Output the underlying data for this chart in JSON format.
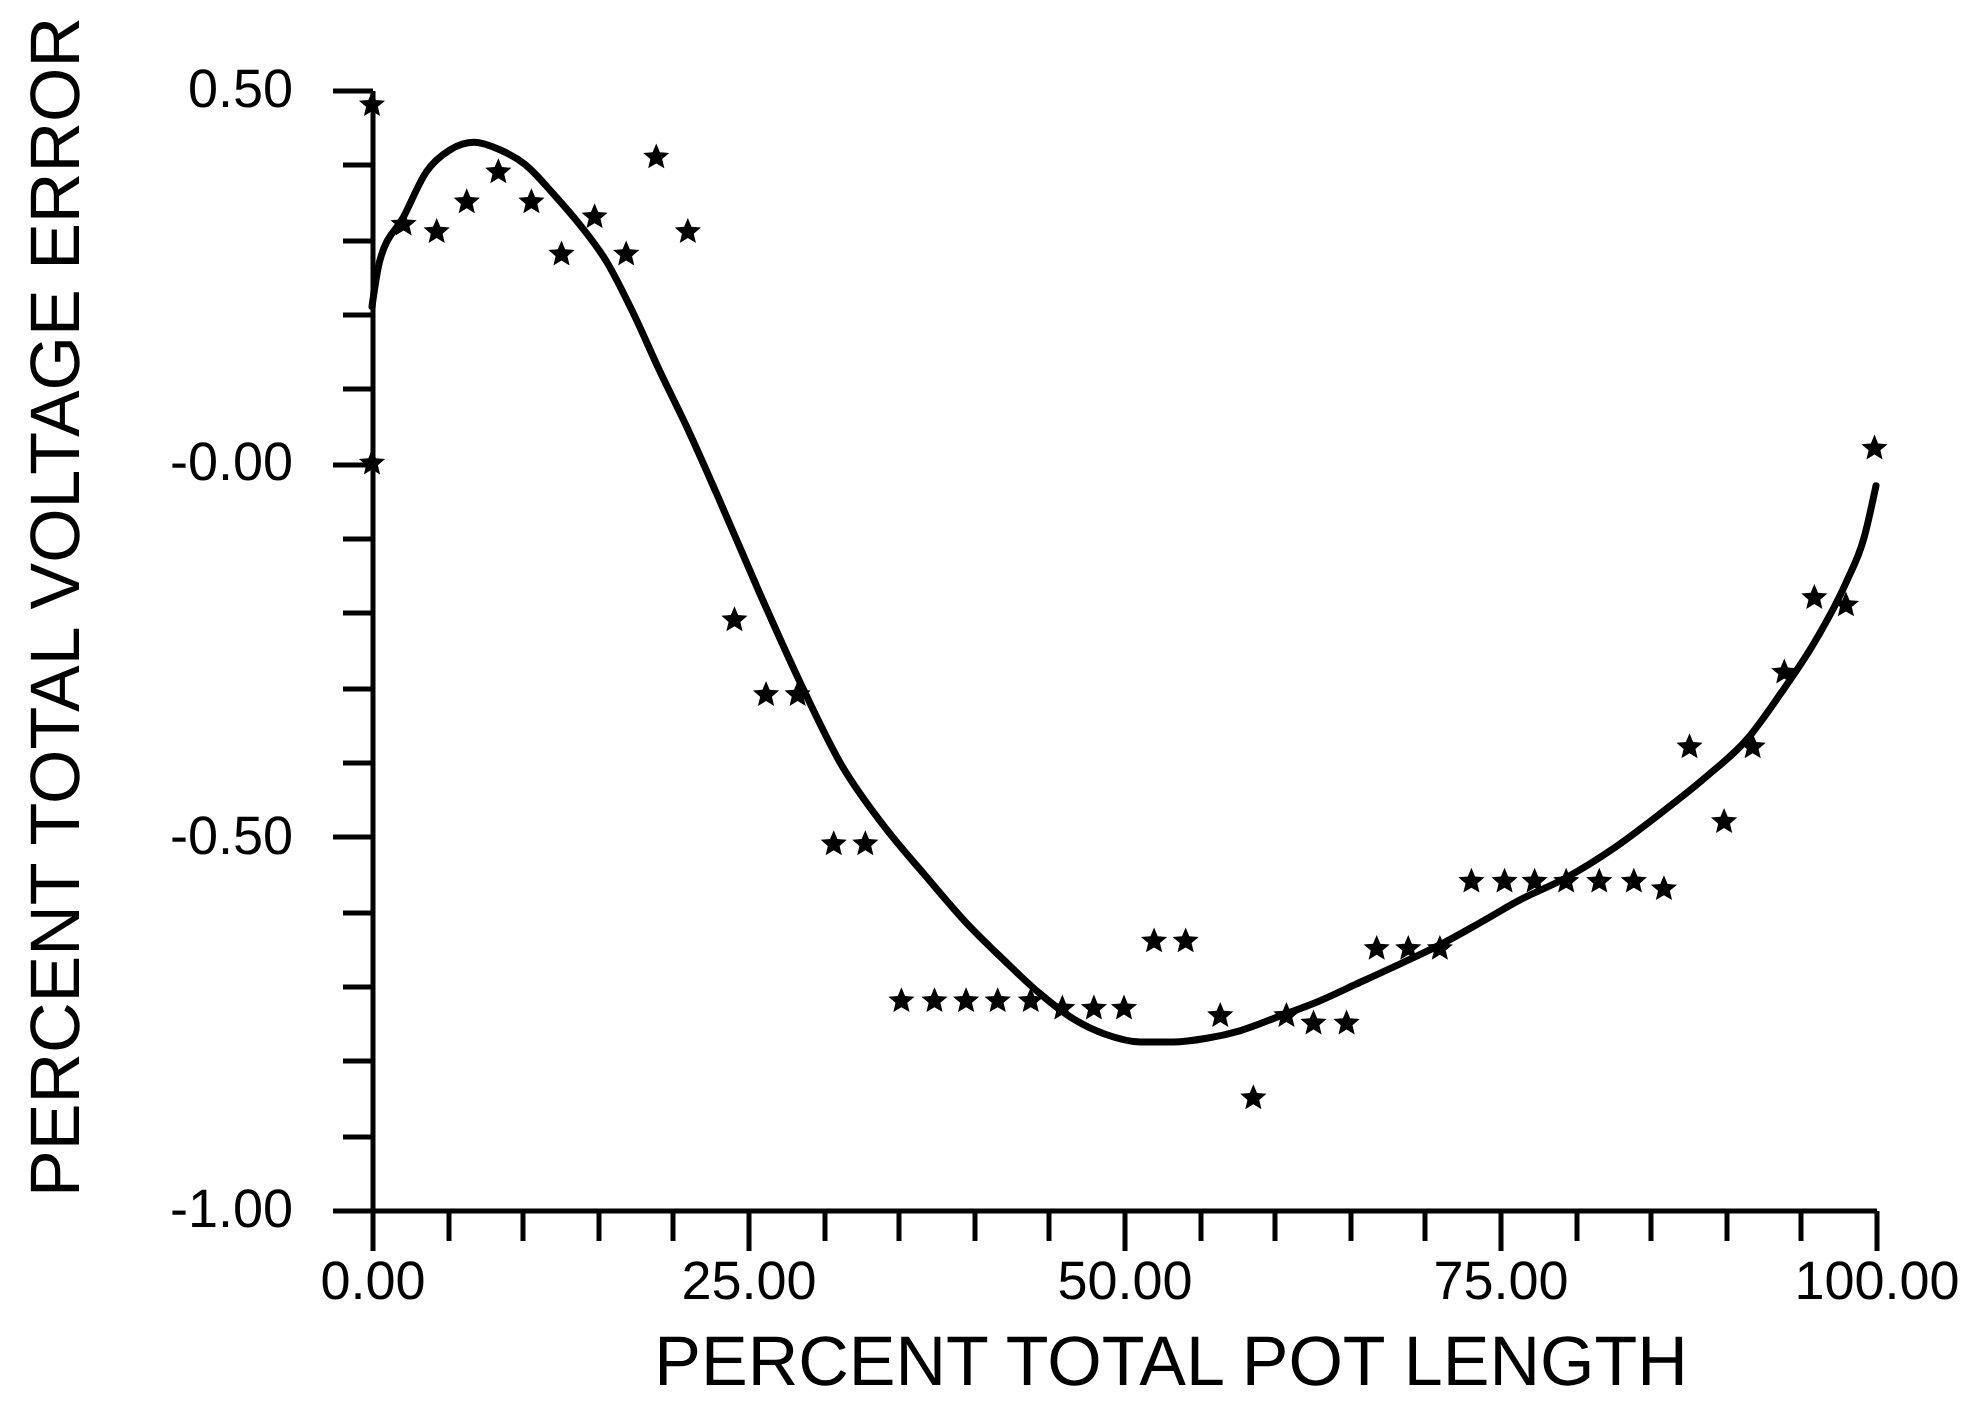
{
  "chart_data": {
    "type": "scatter",
    "xlabel": "PERCENT TOTAL POT LENGTH",
    "ylabel": "PERCENT TOTAL VOLTAGE ERROR",
    "xlim": [
      0,
      100
    ],
    "ylim": [
      -1,
      0.5
    ],
    "xticks": [
      {
        "value": 0,
        "label": "0.00"
      },
      {
        "value": 5,
        "label": null
      },
      {
        "value": 10,
        "label": null
      },
      {
        "value": 15,
        "label": null
      },
      {
        "value": 20,
        "label": null
      },
      {
        "value": 25,
        "label": "25.00"
      },
      {
        "value": 30,
        "label": null
      },
      {
        "value": 35,
        "label": null
      },
      {
        "value": 40,
        "label": null
      },
      {
        "value": 45,
        "label": null
      },
      {
        "value": 50,
        "label": "50.00"
      },
      {
        "value": 55,
        "label": null
      },
      {
        "value": 60,
        "label": null
      },
      {
        "value": 65,
        "label": null
      },
      {
        "value": 70,
        "label": null
      },
      {
        "value": 75,
        "label": "75.00"
      },
      {
        "value": 80,
        "label": null
      },
      {
        "value": 85,
        "label": null
      },
      {
        "value": 90,
        "label": null
      },
      {
        "value": 95,
        "label": null
      },
      {
        "value": 100,
        "label": "100.00"
      }
    ],
    "yticks": [
      {
        "value": -1,
        "label": "-1.00"
      },
      {
        "value": -0.9,
        "label": null
      },
      {
        "value": -0.8,
        "label": null
      },
      {
        "value": -0.7,
        "label": null
      },
      {
        "value": -0.6,
        "label": null
      },
      {
        "value": -0.5,
        "label": "-0.50"
      },
      {
        "value": -0.4,
        "label": null
      },
      {
        "value": -0.3,
        "label": null
      },
      {
        "value": -0.2,
        "label": null
      },
      {
        "value": -0.1,
        "label": null
      },
      {
        "value": 0,
        "label": "-0.00"
      },
      {
        "value": 0.1,
        "label": null
      },
      {
        "value": 0.2,
        "label": null
      },
      {
        "value": 0.3,
        "label": null
      },
      {
        "value": 0.4,
        "label": null
      },
      {
        "value": 0.5,
        "label": "0.50"
      }
    ],
    "series": [
      {
        "color": "#000000",
        "marker": "star",
        "x": [
          0,
          0,
          2.1,
          4.3,
          6.3,
          8.4,
          10.6,
          12.6,
          14.8,
          16.9,
          18.9,
          21.0,
          24.1,
          26.2,
          28.3,
          30.7,
          32.8,
          35.2,
          37.4,
          39.5,
          41.6,
          43.8,
          45.9,
          48.0,
          50.0,
          52.0,
          54.1,
          56.4,
          58.6,
          60.8,
          62.6,
          64.8,
          66.8,
          68.9,
          71.0,
          73.1,
          75.3,
          77.3,
          79.4,
          81.6,
          83.9,
          85.9,
          87.6,
          89.9,
          91.8,
          93.9,
          95.9,
          98.0,
          99.9
        ],
        "values": [
          0.48,
          0.0,
          0.32,
          0.31,
          0.35,
          0.39,
          0.35,
          0.28,
          0.33,
          0.28,
          0.41,
          0.31,
          -0.21,
          -0.31,
          -0.31,
          -0.51,
          -0.51,
          -0.72,
          -0.72,
          -0.72,
          -0.72,
          -0.72,
          -0.73,
          -0.73,
          -0.73,
          -0.64,
          -0.64,
          -0.74,
          -0.85,
          -0.74,
          -0.75,
          -0.75,
          -0.65,
          -0.65,
          -0.65,
          -0.56,
          -0.56,
          -0.56,
          -0.56,
          -0.56,
          -0.56,
          -0.57,
          -0.38,
          -0.48,
          -0.38,
          -0.28,
          -0.18,
          -0.19,
          0.02
        ]
      },
      {
        "type": "line",
        "color": "#000000",
        "marker": "none",
        "line_style": "solid",
        "x": [
          0,
          0.5,
          2.1,
          3.6,
          5.2,
          6.8,
          8.5,
          10.2,
          12.1,
          13.8,
          15.6,
          17.4,
          19.1,
          20.9,
          22.9,
          25.8,
          28.5,
          31.1,
          34.2,
          36.7,
          39.5,
          42.0,
          44.4,
          46.7,
          48.8,
          51.1,
          53.3,
          55.5,
          57.7,
          60.4,
          63.0,
          65.7,
          68.4,
          71.0,
          73.7,
          76.3,
          79.4,
          82.6,
          85.6,
          88.7,
          91.4,
          93.6,
          95.9,
          98.0,
          99.2,
          100
        ],
        "values": [
          0.21,
          0.27,
          0.33,
          0.39,
          0.42,
          0.43,
          0.42,
          0.4,
          0.36,
          0.32,
          0.27,
          0.2,
          0.125,
          0.05,
          -0.04,
          -0.175,
          -0.295,
          -0.4,
          -0.49,
          -0.55,
          -0.615,
          -0.665,
          -0.71,
          -0.745,
          -0.765,
          -0.775,
          -0.775,
          -0.77,
          -0.76,
          -0.74,
          -0.72,
          -0.695,
          -0.67,
          -0.645,
          -0.615,
          -0.585,
          -0.555,
          -0.515,
          -0.47,
          -0.42,
          -0.37,
          -0.31,
          -0.24,
          -0.16,
          -0.1,
          -0.03
        ]
      }
    ]
  }
}
